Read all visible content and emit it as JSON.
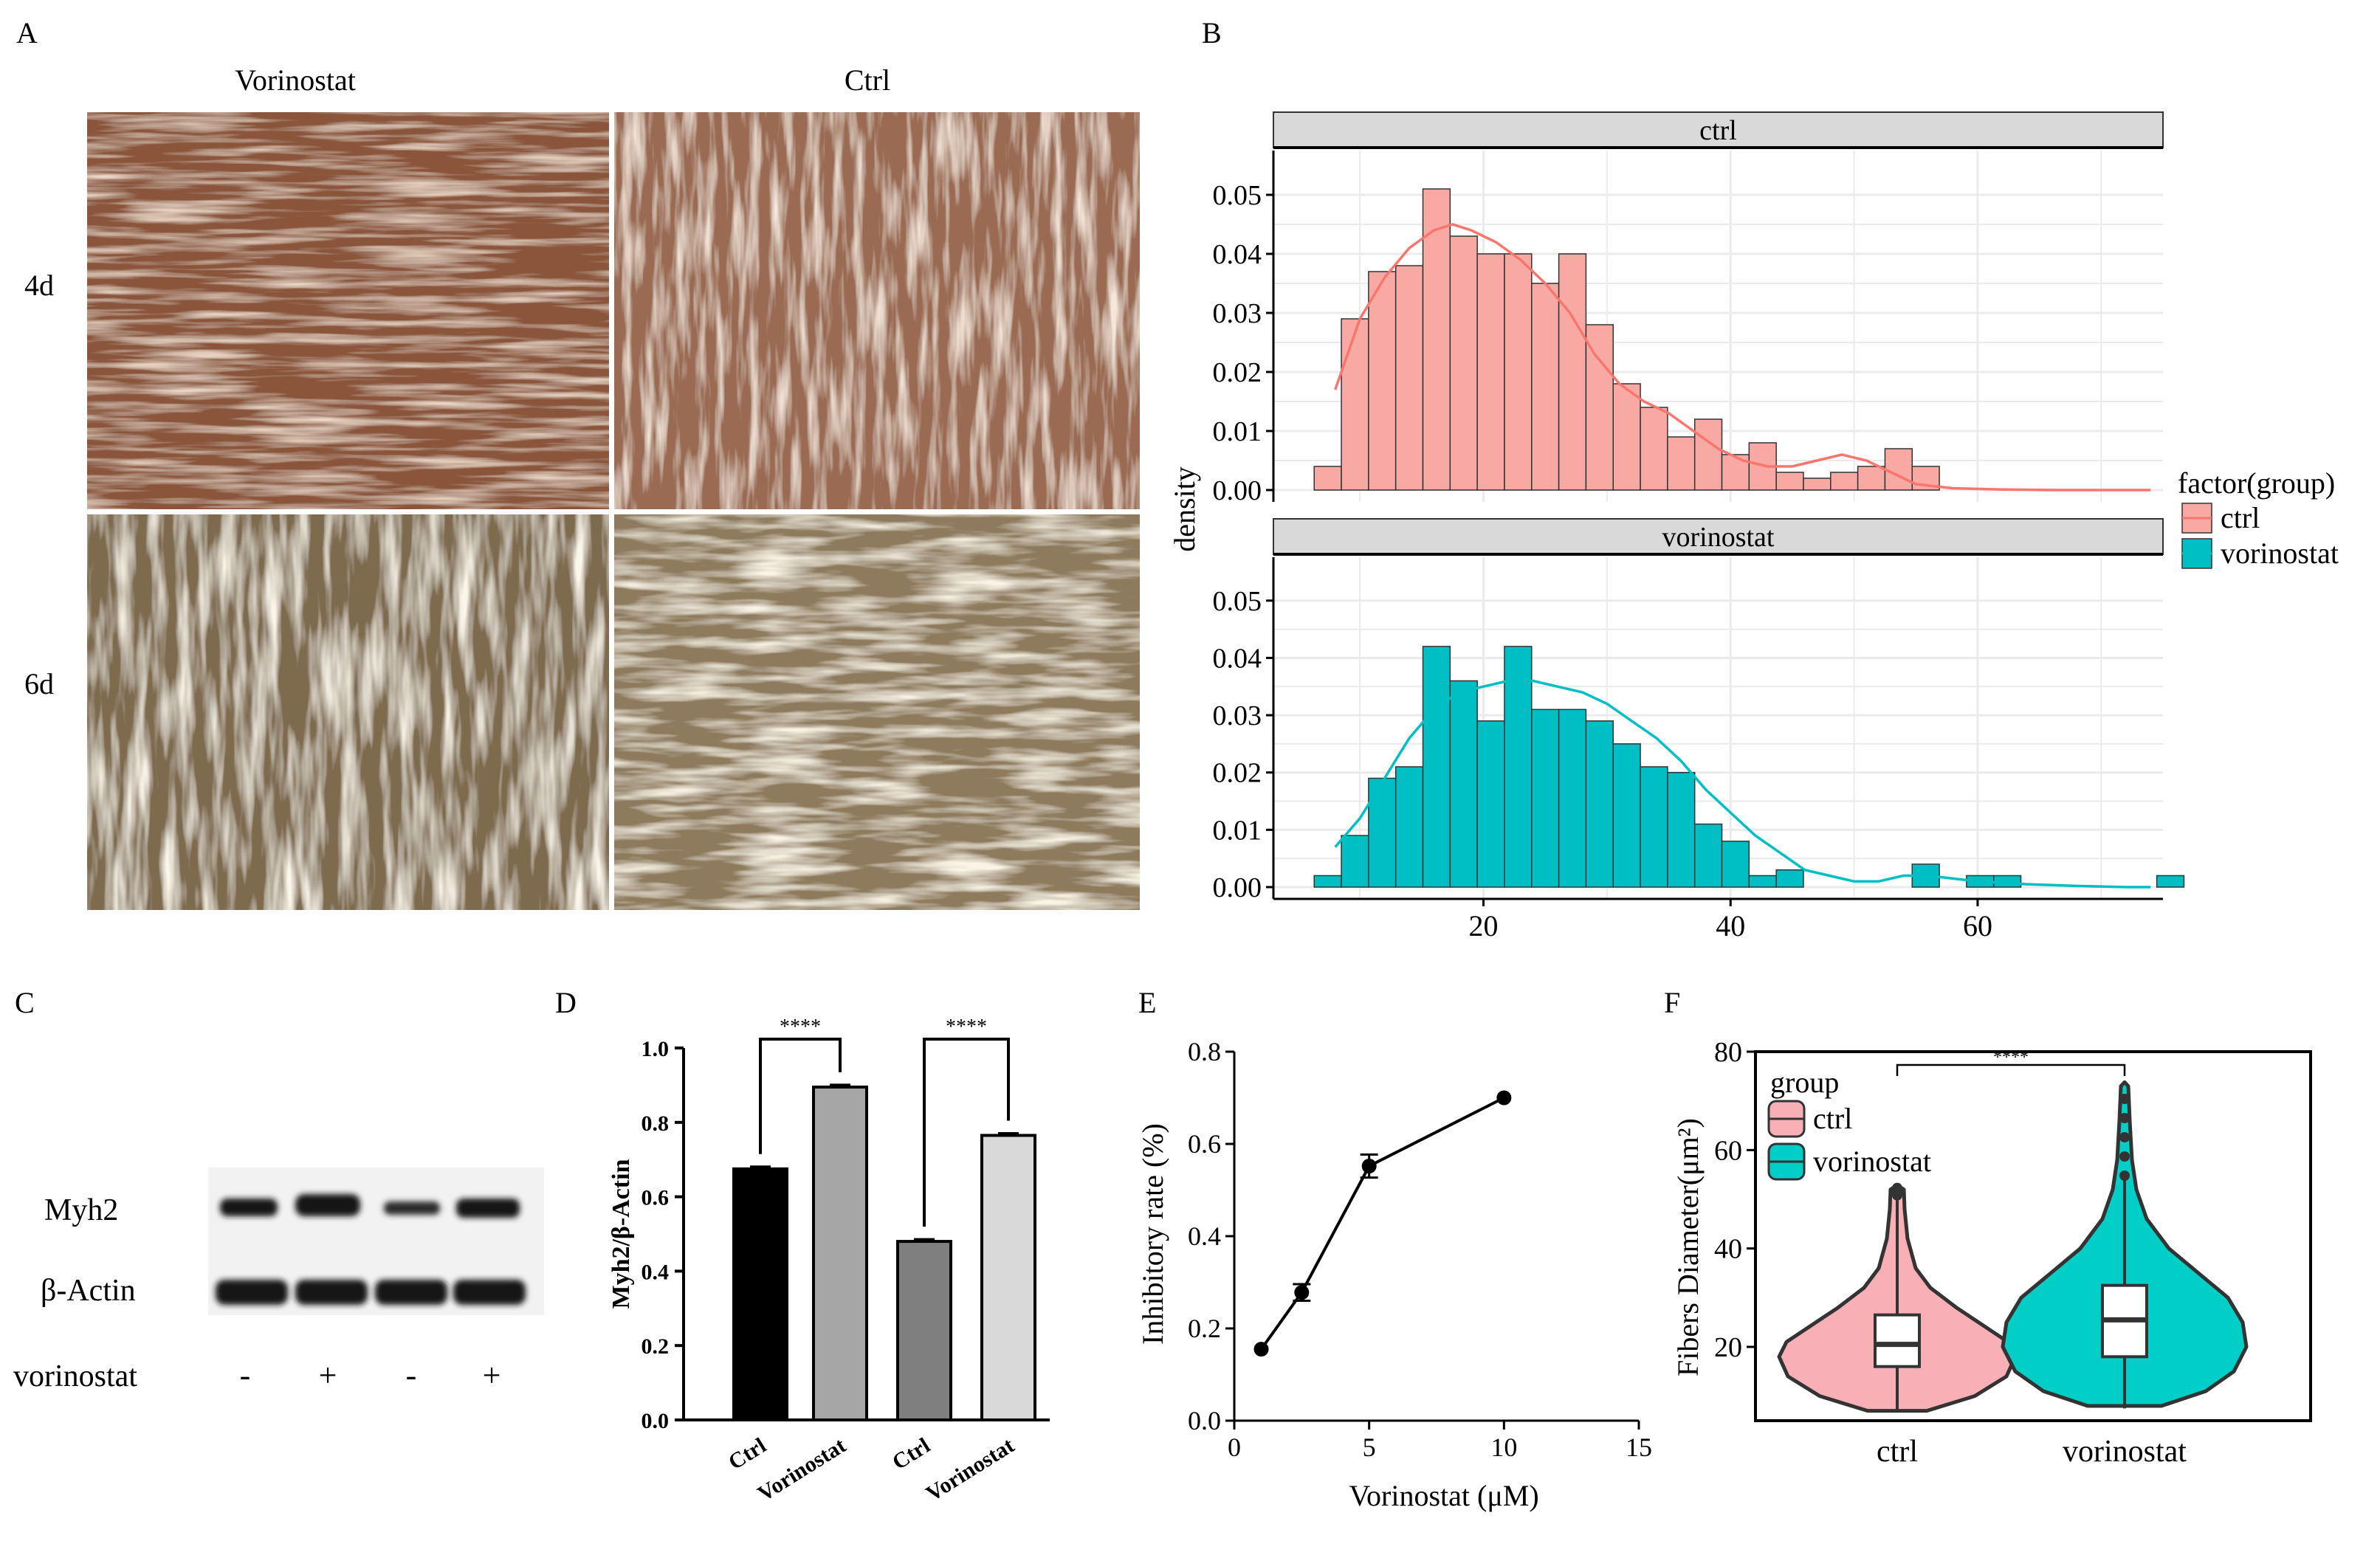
{
  "panel_labels": {
    "a": "A",
    "b": "B",
    "c": "C",
    "d": "D",
    "e": "E",
    "f": "F"
  },
  "panel_a": {
    "col_titles": [
      "Vorinostat",
      "Ctrl"
    ],
    "row_labels": [
      "4d",
      "6d"
    ]
  },
  "panel_c": {
    "bands": [
      "Myh2",
      "β-Actin"
    ],
    "treatment_label": "vorinostat",
    "lane_signs": [
      "-",
      "+",
      "-",
      "+"
    ]
  },
  "colors": {
    "ctrl": "#F8766D",
    "ctrl_fill": "#F8A9A4",
    "vorinostat": "#00BFC4",
    "violin_ctrl": "#F8AFB6",
    "violin_vorinostat": "#00CEC7",
    "strip": "#D9D9D9"
  },
  "chart_data": [
    {
      "panel": "B",
      "type": "bar",
      "subtype": "faceted-histogram-with-density",
      "facets": [
        "ctrl",
        "vorinostat"
      ],
      "ylabel": "density",
      "xlabel": "",
      "xlim": [
        3,
        75
      ],
      "ylim": [
        0,
        0.055
      ],
      "x_ticks": [
        20,
        40,
        60
      ],
      "y_ticks": [
        "0.00",
        "0.01",
        "0.02",
        "0.03",
        "0.04",
        "0.05"
      ],
      "bin_width": 2.2,
      "bin_start": 6.3,
      "legend": {
        "title": "factor(group)",
        "entries": [
          "ctrl",
          "vorinostat"
        ],
        "position": "right"
      },
      "series": [
        {
          "name": "ctrl",
          "values": [
            0.004,
            0.029,
            0.037,
            0.038,
            0.051,
            0.043,
            0.04,
            0.04,
            0.035,
            0.04,
            0.028,
            0.018,
            0.014,
            0.009,
            0.012,
            0.006,
            0.008,
            0.003,
            0.002,
            0.003,
            0.004,
            0.007,
            0.004
          ],
          "density_x": [
            8,
            10,
            12,
            14,
            16,
            17.5,
            19,
            21,
            23,
            25,
            27,
            29,
            31,
            33,
            35,
            37,
            39,
            41,
            43,
            45,
            47,
            49,
            51,
            53,
            55,
            58,
            62,
            66,
            70,
            74
          ],
          "density_y": [
            0.017,
            0.029,
            0.036,
            0.041,
            0.044,
            0.045,
            0.044,
            0.042,
            0.039,
            0.035,
            0.03,
            0.023,
            0.018,
            0.015,
            0.013,
            0.01,
            0.007,
            0.005,
            0.004,
            0.004,
            0.005,
            0.006,
            0.005,
            0.003,
            0.001,
            0.0003,
            0.0001,
            0.0,
            0.0,
            0.0
          ]
        },
        {
          "name": "vorinostat",
          "values": [
            0.002,
            0.009,
            0.019,
            0.021,
            0.042,
            0.036,
            0.029,
            0.042,
            0.031,
            0.031,
            0.029,
            0.025,
            0.021,
            0.02,
            0.011,
            0.008,
            0.002,
            0.003,
            0.0,
            0.0,
            0.0,
            0.0,
            0.004,
            0.0,
            0.002,
            0.002,
            0.0,
            0.0,
            0.0,
            0.0,
            0.0,
            0.002
          ],
          "density_x": [
            8,
            10,
            12,
            14,
            16,
            18,
            20,
            22,
            24,
            26,
            28,
            30,
            32,
            34,
            36,
            38,
            40,
            42,
            44,
            46,
            48,
            50,
            52,
            54,
            56,
            58,
            60,
            64,
            68,
            72,
            74
          ],
          "density_y": [
            0.007,
            0.012,
            0.019,
            0.026,
            0.031,
            0.034,
            0.035,
            0.036,
            0.036,
            0.035,
            0.034,
            0.032,
            0.029,
            0.026,
            0.022,
            0.017,
            0.013,
            0.009,
            0.006,
            0.003,
            0.002,
            0.001,
            0.001,
            0.002,
            0.002,
            0.0015,
            0.001,
            0.0005,
            0.0002,
            0.0,
            0.0
          ]
        }
      ]
    },
    {
      "panel": "D",
      "type": "bar",
      "categories": [
        "Ctrl",
        "Vorinostat",
        "Ctrl",
        "Vorinostat"
      ],
      "values": [
        0.675,
        0.895,
        0.48,
        0.765
      ],
      "bar_colors": [
        "#000000",
        "#A6A6A6",
        "#7F7F7F",
        "#D9D9D9"
      ],
      "ylabel": "Myh2/β-Actin",
      "ylim": [
        0,
        1.0
      ],
      "y_ticks": [
        "0.0",
        "0.2",
        "0.4",
        "0.6",
        "0.8",
        "1.0"
      ],
      "significance": [
        "****",
        "****"
      ]
    },
    {
      "panel": "E",
      "type": "line",
      "x": [
        1,
        2.5,
        5,
        10
      ],
      "y": [
        0.155,
        0.278,
        0.552,
        0.7
      ],
      "error": [
        0,
        0.018,
        0.025,
        0
      ],
      "xlabel": "Vorinostat (μM)",
      "ylabel": "Inhibitory rate (%)",
      "xlim": [
        0,
        15
      ],
      "ylim": [
        0,
        0.8
      ],
      "x_ticks": [
        "0",
        "5",
        "10",
        "15"
      ],
      "y_ticks": [
        "0.0",
        "0.2",
        "0.4",
        "0.6",
        "0.8"
      ]
    },
    {
      "panel": "F",
      "type": "violin",
      "categories": [
        "ctrl",
        "vorinostat"
      ],
      "ylabel": "Fibers Diameter(μm²)",
      "ylim": [
        5,
        80
      ],
      "y_ticks": [
        "20",
        "40",
        "60",
        "80"
      ],
      "legend": {
        "title": "group",
        "entries": [
          "ctrl",
          "vorinostat"
        ],
        "position": "top-left"
      },
      "significance": "****",
      "boxes": [
        {
          "name": "ctrl",
          "min": 7,
          "q1": 16,
          "median": 20.5,
          "q3": 26.5,
          "max": 50,
          "outliers_to": 52.5
        },
        {
          "name": "vorinostat",
          "min": 7.5,
          "q1": 18,
          "median": 25.5,
          "q3": 32.5,
          "max": 54,
          "outliers_to": 73.5
        }
      ]
    }
  ]
}
